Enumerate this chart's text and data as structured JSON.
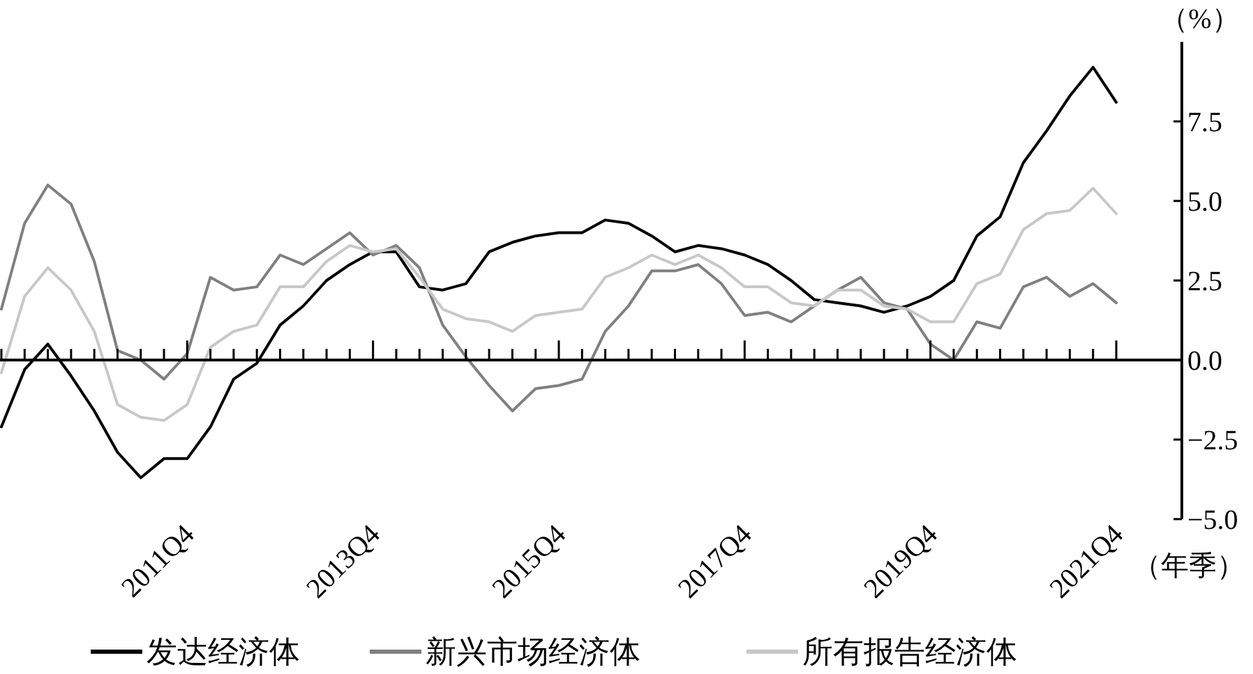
{
  "chart_data": {
    "type": "line",
    "xlabel": "（年季）",
    "ylabel": "（%）",
    "categories": [
      null,
      null,
      null,
      null,
      null,
      null,
      null,
      null,
      "2011Q4",
      null,
      null,
      null,
      null,
      null,
      null,
      null,
      "2013Q4",
      null,
      null,
      null,
      null,
      null,
      null,
      null,
      "2015Q4",
      null,
      null,
      null,
      null,
      null,
      null,
      null,
      "2017Q4",
      null,
      null,
      null,
      null,
      null,
      null,
      null,
      "2019Q4",
      null,
      null,
      null,
      null,
      null,
      null,
      null,
      "2021Q4"
    ],
    "ylim": [
      -5,
      10
    ],
    "yticks": [
      {
        "value": -5,
        "label": "−5.0"
      },
      {
        "value": -2.5,
        "label": "−2.5"
      },
      {
        "value": 0,
        "label": "0.0"
      },
      {
        "value": 2.5,
        "label": "2.5"
      },
      {
        "value": 5,
        "label": "5.0"
      },
      {
        "value": 7.5,
        "label": "7.5"
      }
    ],
    "legend": "bottom",
    "series": [
      {
        "name": "发达经济体",
        "color": "#000000",
        "values": [
          -2.1,
          -0.3,
          0.5,
          -0.5,
          -1.6,
          -2.9,
          -3.7,
          -3.1,
          -3.1,
          -2.1,
          -0.6,
          -0.1,
          1.1,
          1.7,
          2.5,
          3.0,
          3.4,
          3.4,
          2.3,
          2.2,
          2.4,
          3.4,
          3.7,
          3.9,
          4.0,
          4.0,
          4.4,
          4.3,
          3.9,
          3.4,
          3.6,
          3.5,
          3.3,
          3.0,
          2.5,
          1.9,
          1.8,
          1.7,
          1.5,
          1.7,
          2.0,
          2.5,
          3.9,
          4.5,
          6.2,
          7.2,
          8.3,
          9.2,
          8.1
        ]
      },
      {
        "name": "新兴市场经济体",
        "color": "#808080",
        "values": [
          1.6,
          4.3,
          5.5,
          4.9,
          3.1,
          0.3,
          0.0,
          -0.6,
          0.2,
          2.6,
          2.2,
          2.3,
          3.3,
          3.0,
          3.5,
          4.0,
          3.3,
          3.6,
          2.9,
          1.1,
          0.1,
          -0.8,
          -1.6,
          -0.9,
          -0.8,
          -0.6,
          0.9,
          1.7,
          2.8,
          2.8,
          3.0,
          2.4,
          1.4,
          1.5,
          1.2,
          1.7,
          2.2,
          2.6,
          1.8,
          1.6,
          0.5,
          0.0,
          1.2,
          1.0,
          2.3,
          2.6,
          2.0,
          2.4,
          1.8
        ]
      },
      {
        "name": "所有报告经济体",
        "color": "#c8c8c8",
        "values": [
          -0.4,
          2.0,
          2.9,
          2.2,
          0.9,
          -1.4,
          -1.8,
          -1.9,
          -1.4,
          0.4,
          0.9,
          1.1,
          2.3,
          2.3,
          3.1,
          3.6,
          3.4,
          3.5,
          2.6,
          1.6,
          1.3,
          1.2,
          0.9,
          1.4,
          1.5,
          1.6,
          2.6,
          2.9,
          3.3,
          3.0,
          3.3,
          2.9,
          2.3,
          2.3,
          1.8,
          1.7,
          2.2,
          2.2,
          1.7,
          1.6,
          1.2,
          1.2,
          2.4,
          2.7,
          4.1,
          4.6,
          4.7,
          5.4,
          4.6
        ]
      }
    ]
  }
}
